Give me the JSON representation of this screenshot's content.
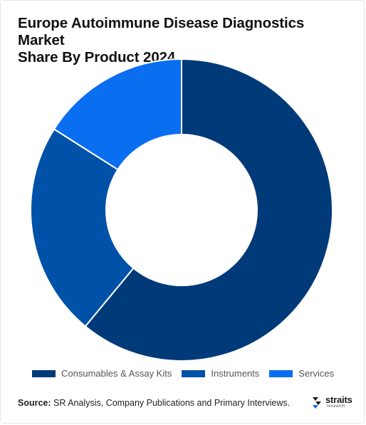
{
  "chart_data": {
    "type": "donut",
    "title": "Europe Autoimmune Disease Diagnostics Market Share By Product 2024",
    "categories": [
      "Consumables & Assay Kits",
      "Instruments",
      "Services"
    ],
    "values": [
      61,
      23,
      16
    ],
    "colors": [
      "#003a78",
      "#0051a8",
      "#0a6ef0"
    ],
    "legend_position": "bottom",
    "grid": false
  },
  "title_lines": [
    "Europe Autoimmune Disease Diagnostics Market",
    "Share By Product 2024"
  ],
  "source": {
    "label": "Source:",
    "text": "SR Analysis, Company Publications and Primary Interviews."
  },
  "logo": {
    "word": "straits",
    "sub": "research",
    "icon": "straits-logo-icon"
  }
}
